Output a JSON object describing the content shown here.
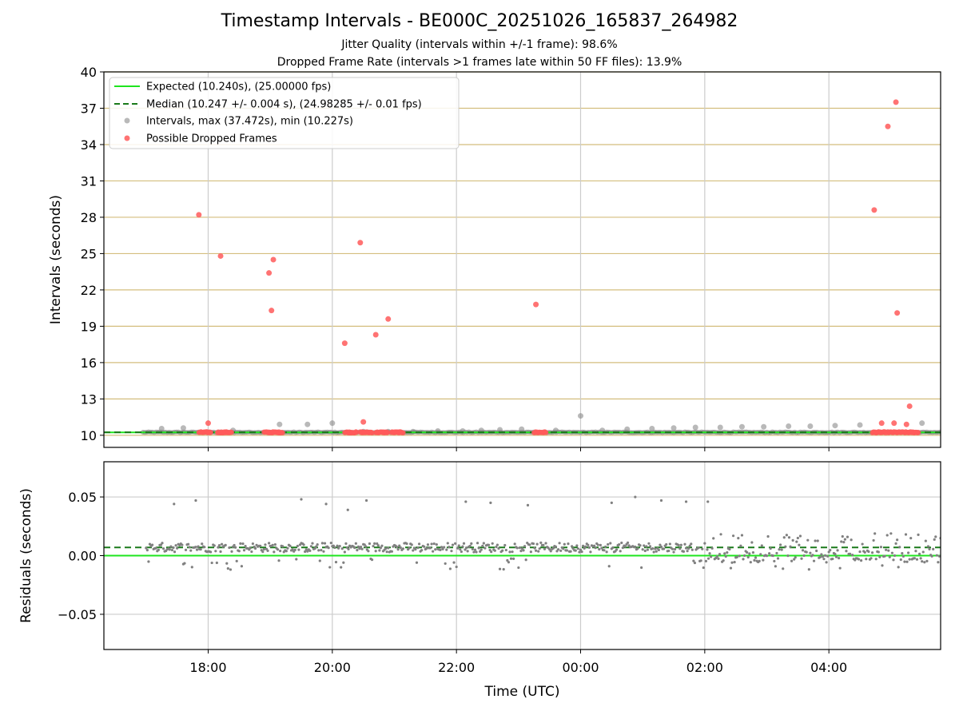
{
  "title": "Timestamp Intervals - BE000C_20251026_165837_264982",
  "subtitle_jitter": "Jitter Quality (intervals within +/-1 frame): 98.6%",
  "subtitle_dropped": "Dropped Frame Rate (intervals >1 frames late within 50 FF files): 13.9%",
  "colors": {
    "expected": "#1ee51e",
    "median": "#1a7a1a",
    "intervals": "#808080",
    "dropped": "#ff5a5a",
    "hgrid_top": "#d4be7e",
    "vgrid": "#cccccc"
  },
  "chart_data": [
    {
      "type": "scatter",
      "name": "intervals",
      "ylabel": "Intervals (seconds)",
      "xlabel": "",
      "x_unit": "hours since 00:00 UTC (negative = previous day)",
      "xlim": [
        -7.68,
        5.8
      ],
      "ylim": [
        9,
        40
      ],
      "yticks": [
        10,
        13,
        16,
        19,
        22,
        25,
        28,
        31,
        34,
        37,
        40
      ],
      "ytick_labels": [
        "10",
        "13",
        "16",
        "19",
        "22",
        "25",
        "28",
        "31",
        "34",
        "37",
        "40"
      ],
      "xticks": [
        -6,
        -4,
        -2,
        0,
        2,
        4
      ],
      "expected_value": 10.24,
      "median_value": 10.247,
      "line_start_x": -7.05,
      "legend": [
        "Expected (10.240s), (25.00000 fps)",
        "Median (10.247 +/- 0.004 s), (24.98285 +/- 0.01 fps)",
        "Intervals, max (37.472s), min (10.227s)",
        "Possible Dropped Frames"
      ],
      "legend_location": "upper-left",
      "intervals": [
        [
          -6.75,
          10.55
        ],
        [
          -6.4,
          10.6
        ],
        [
          -5.6,
          10.4
        ],
        [
          -4.85,
          10.9
        ],
        [
          -4.4,
          10.9
        ],
        [
          -4.0,
          11.0
        ],
        [
          -3.5,
          10.3
        ],
        [
          -3.1,
          10.3
        ],
        [
          -2.7,
          10.3
        ],
        [
          -2.3,
          10.35
        ],
        [
          -1.9,
          10.35
        ],
        [
          -1.6,
          10.4
        ],
        [
          -1.3,
          10.45
        ],
        [
          -0.95,
          10.5
        ],
        [
          -0.4,
          10.4
        ],
        [
          0.0,
          11.6
        ],
        [
          0.35,
          10.4
        ],
        [
          0.75,
          10.5
        ],
        [
          1.15,
          10.55
        ],
        [
          1.5,
          10.6
        ],
        [
          1.85,
          10.65
        ],
        [
          2.25,
          10.65
        ],
        [
          2.6,
          10.7
        ],
        [
          2.95,
          10.7
        ],
        [
          3.35,
          10.75
        ],
        [
          3.7,
          10.75
        ],
        [
          4.1,
          10.8
        ],
        [
          4.5,
          10.85
        ],
        [
          5.5,
          11.0
        ]
      ],
      "dropped": [
        [
          -6.15,
          28.2
        ],
        [
          -5.8,
          24.8
        ],
        [
          -5.02,
          23.4
        ],
        [
          -4.95,
          24.5
        ],
        [
          -4.98,
          20.3
        ],
        [
          -3.8,
          17.6
        ],
        [
          -3.55,
          25.9
        ],
        [
          -3.3,
          18.3
        ],
        [
          -3.1,
          19.6
        ],
        [
          -0.72,
          20.8
        ],
        [
          4.73,
          28.6
        ],
        [
          4.95,
          35.5
        ],
        [
          5.08,
          37.5
        ],
        [
          5.1,
          20.1
        ],
        [
          5.3,
          12.4
        ],
        [
          -6.0,
          11.0
        ],
        [
          -3.5,
          11.1
        ],
        [
          4.85,
          11.0
        ],
        [
          5.05,
          11.0
        ],
        [
          5.25,
          10.9
        ]
      ],
      "dropped_clusters": [
        [
          -6.15,
          -5.95
        ],
        [
          -5.85,
          -5.62
        ],
        [
          -5.1,
          -4.8
        ],
        [
          -3.8,
          -3.6
        ],
        [
          -3.55,
          -3.35
        ],
        [
          -3.3,
          -3.1
        ],
        [
          -3.05,
          -2.85
        ],
        [
          -0.75,
          -0.55
        ],
        [
          4.7,
          4.92
        ],
        [
          4.95,
          5.45
        ]
      ]
    },
    {
      "type": "scatter",
      "name": "residuals",
      "ylabel": "Residuals (seconds)",
      "xlabel": "Time (UTC)",
      "xlim": [
        -7.68,
        5.8
      ],
      "ylim": [
        -0.08,
        0.08
      ],
      "yticks": [
        -0.05,
        0.0,
        0.05
      ],
      "ytick_labels": [
        "−0.05",
        "0.00",
        "0.05"
      ],
      "xticks": [
        -6,
        -4,
        -2,
        0,
        2,
        4
      ],
      "xtick_labels": [
        "18:00",
        "20:00",
        "22:00",
        "00:00",
        "02:00",
        "04:00"
      ],
      "expected_value": 0.0,
      "median_value": 0.007,
      "line_start_x": -7.05,
      "outliers": [
        [
          -6.55,
          0.044
        ],
        [
          -6.2,
          0.047
        ],
        [
          -4.5,
          0.048
        ],
        [
          -4.1,
          0.044
        ],
        [
          -3.75,
          0.039
        ],
        [
          -3.45,
          0.047
        ],
        [
          -1.85,
          0.046
        ],
        [
          -1.45,
          0.045
        ],
        [
          -0.85,
          0.043
        ],
        [
          0.5,
          0.045
        ],
        [
          0.88,
          0.05
        ],
        [
          1.3,
          0.047
        ],
        [
          1.7,
          0.046
        ],
        [
          2.05,
          0.046
        ]
      ]
    }
  ]
}
